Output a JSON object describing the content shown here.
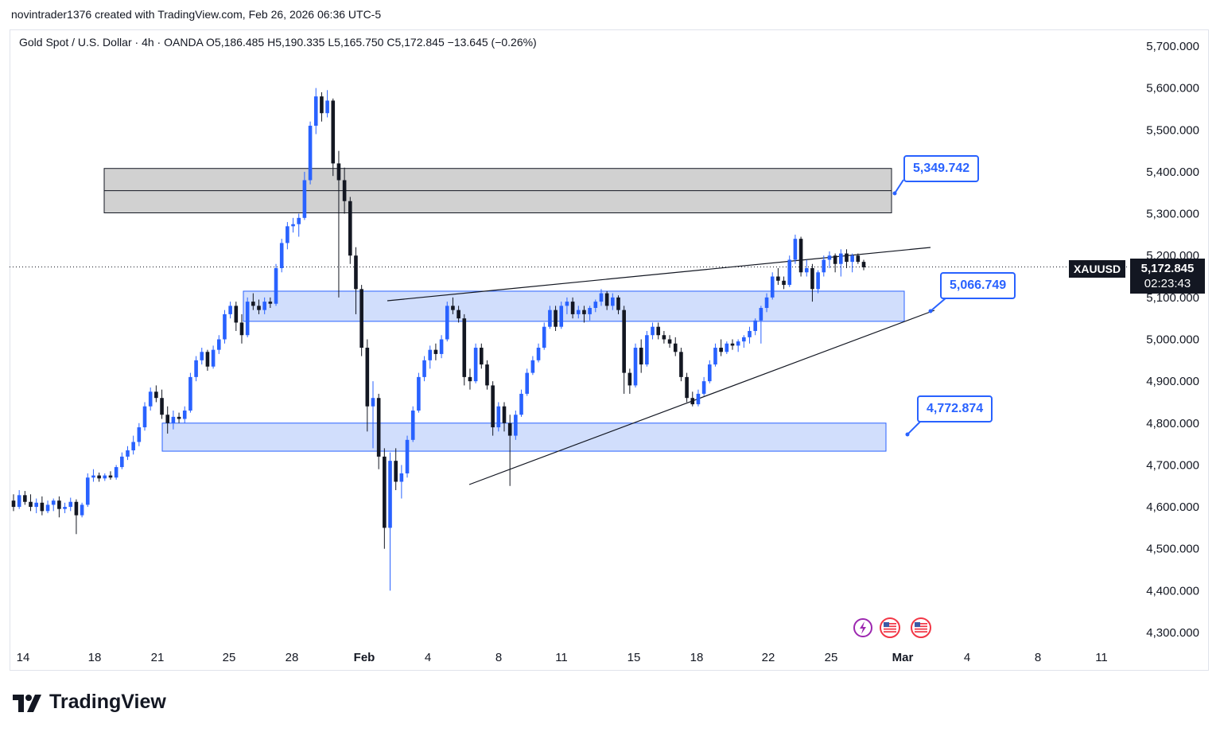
{
  "header": {
    "attribution": "novintrader1376 created with TradingView.com, Feb 26, 2026 06:36 UTC-5"
  },
  "legend": {
    "instrument": "Gold Spot / U.S. Dollar",
    "timeframe": "4h",
    "exchange": "OANDA",
    "open": "O5,186.485",
    "high": "H5,190.335",
    "low": "L5,165.750",
    "close": "C5,172.845",
    "change": "−13.645 (−0.26%)"
  },
  "price_label": {
    "symbol": "XAUUSD",
    "price": "5,172.845",
    "countdown": "02:23:43"
  },
  "callouts": [
    {
      "text": "5,349.742"
    },
    {
      "text": "5,066.749"
    },
    {
      "text": "4,772.874"
    }
  ],
  "brand": {
    "logo_text": "TradingView"
  },
  "colors": {
    "up": "#2962ff",
    "down": "#131722",
    "zone_blue": "#c9d8fc",
    "zone_gray": "#d1d1d1",
    "accent": "#2962ff"
  },
  "icons": [
    "lightning-icon",
    "us-flag-icon",
    "us-flag-icon"
  ],
  "chart_data": {
    "type": "candlestick",
    "y_axis_ticks": [
      "5,700.000",
      "5,600.000",
      "5,500.000",
      "5,400.000",
      "5,300.000",
      "5,200.000",
      "5,100.000",
      "5,000.000",
      "4,900.000",
      "4,800.000",
      "4,700.000",
      "4,600.000",
      "4,500.000",
      "4,400.000",
      "4,300.000"
    ],
    "y_tick_values": [
      5700,
      5600,
      5500,
      5400,
      5300,
      5200,
      5100,
      5000,
      4900,
      4800,
      4700,
      4600,
      4500,
      4400,
      4300
    ],
    "x_axis_ticks": [
      "14",
      "18",
      "21",
      "25",
      "28",
      "Feb",
      "4",
      "8",
      "11",
      "15",
      "18",
      "22",
      "25",
      "Mar",
      "4",
      "8",
      "11"
    ],
    "ylim": [
      4270,
      5790
    ],
    "last_price": 5172.845,
    "zones": [
      {
        "name": "resistance",
        "from": 5302,
        "to": 5408,
        "mid": 5355
      },
      {
        "name": "support-upper",
        "from": 5043,
        "to": 5115
      },
      {
        "name": "support-lower",
        "from": 4733,
        "to": 4800
      }
    ],
    "key_levels": [
      5349.742,
      5066.749,
      4772.874
    ],
    "ohlc": [
      [
        4615,
        4630,
        4590,
        4600
      ],
      [
        4600,
        4640,
        4595,
        4628
      ],
      [
        4628,
        4638,
        4605,
        4612
      ],
      [
        4612,
        4630,
        4590,
        4600
      ],
      [
        4600,
        4620,
        4585,
        4610
      ],
      [
        4610,
        4625,
        4580,
        4590
      ],
      [
        4590,
        4615,
        4585,
        4605
      ],
      [
        4605,
        4620,
        4590,
        4615
      ],
      [
        4615,
        4625,
        4575,
        4595
      ],
      [
        4595,
        4610,
        4585,
        4600
      ],
      [
        4600,
        4622,
        4590,
        4612
      ],
      [
        4612,
        4618,
        4535,
        4580
      ],
      [
        4580,
        4610,
        4575,
        4605
      ],
      [
        4605,
        4680,
        4600,
        4670
      ],
      [
        4670,
        4690,
        4660,
        4675
      ],
      [
        4675,
        4682,
        4660,
        4668
      ],
      [
        4668,
        4680,
        4662,
        4675
      ],
      [
        4675,
        4685,
        4665,
        4670
      ],
      [
        4670,
        4700,
        4665,
        4695
      ],
      [
        4695,
        4730,
        4690,
        4720
      ],
      [
        4720,
        4745,
        4712,
        4735
      ],
      [
        4735,
        4770,
        4725,
        4755
      ],
      [
        4755,
        4800,
        4745,
        4790
      ],
      [
        4790,
        4850,
        4782,
        4840
      ],
      [
        4840,
        4885,
        4830,
        4875
      ],
      [
        4875,
        4890,
        4850,
        4860
      ],
      [
        4860,
        4880,
        4810,
        4820
      ],
      [
        4820,
        4840,
        4775,
        4800
      ],
      [
        4800,
        4830,
        4785,
        4815
      ],
      [
        4815,
        4825,
        4800,
        4810
      ],
      [
        4810,
        4840,
        4800,
        4830
      ],
      [
        4830,
        4920,
        4825,
        4910
      ],
      [
        4910,
        4960,
        4900,
        4950
      ],
      [
        4950,
        4980,
        4940,
        4970
      ],
      [
        4970,
        4975,
        4925,
        4935
      ],
      [
        4935,
        4985,
        4930,
        4975
      ],
      [
        4975,
        5010,
        4965,
        5000
      ],
      [
        5000,
        5070,
        4990,
        5060
      ],
      [
        5060,
        5090,
        5050,
        5080
      ],
      [
        5080,
        5090,
        5020,
        5040
      ],
      [
        5040,
        5060,
        4990,
        5010
      ],
      [
        5010,
        5100,
        5005,
        5090
      ],
      [
        5090,
        5110,
        5070,
        5080
      ],
      [
        5080,
        5095,
        5060,
        5070
      ],
      [
        5070,
        5100,
        5060,
        5090
      ],
      [
        5090,
        5100,
        5075,
        5085
      ],
      [
        5085,
        5180,
        5080,
        5170
      ],
      [
        5170,
        5240,
        5160,
        5230
      ],
      [
        5230,
        5280,
        5215,
        5270
      ],
      [
        5270,
        5290,
        5255,
        5275
      ],
      [
        5275,
        5300,
        5245,
        5290
      ],
      [
        5290,
        5400,
        5285,
        5380
      ],
      [
        5380,
        5520,
        5370,
        5510
      ],
      [
        5510,
        5600,
        5490,
        5580
      ],
      [
        5580,
        5590,
        5520,
        5540
      ],
      [
        5540,
        5595,
        5530,
        5570
      ],
      [
        5570,
        5575,
        5390,
        5420
      ],
      [
        5420,
        5450,
        5100,
        5380
      ],
      [
        5380,
        5410,
        5300,
        5330
      ],
      [
        5330,
        5340,
        5180,
        5200
      ],
      [
        5200,
        5220,
        5060,
        5120
      ],
      [
        5120,
        5130,
        4960,
        4980
      ],
      [
        4980,
        5000,
        4780,
        4840
      ],
      [
        4840,
        4900,
        4740,
        4860
      ],
      [
        4860,
        4870,
        4690,
        4720
      ],
      [
        4720,
        4740,
        4500,
        4550
      ],
      [
        4550,
        4730,
        4400,
        4710
      ],
      [
        4710,
        4740,
        4640,
        4660
      ],
      [
        4660,
        4700,
        4620,
        4680
      ],
      [
        4680,
        4770,
        4670,
        4760
      ],
      [
        4760,
        4840,
        4755,
        4830
      ],
      [
        4830,
        4920,
        4825,
        4910
      ],
      [
        4910,
        4960,
        4900,
        4950
      ],
      [
        4950,
        4985,
        4930,
        4975
      ],
      [
        4975,
        4990,
        4950,
        4965
      ],
      [
        4965,
        5010,
        4955,
        5000
      ],
      [
        5000,
        5090,
        4995,
        5080
      ],
      [
        5080,
        5100,
        5060,
        5070
      ],
      [
        5070,
        5080,
        5040,
        5050
      ],
      [
        5050,
        5060,
        4890,
        4910
      ],
      [
        4910,
        4930,
        4880,
        4900
      ],
      [
        4900,
        4990,
        4895,
        4980
      ],
      [
        4980,
        4990,
        4930,
        4940
      ],
      [
        4940,
        4950,
        4880,
        4890
      ],
      [
        4890,
        4900,
        4770,
        4790
      ],
      [
        4790,
        4850,
        4780,
        4840
      ],
      [
        4840,
        4850,
        4780,
        4800
      ],
      [
        4800,
        4820,
        4650,
        4770
      ],
      [
        4770,
        4830,
        4760,
        4820
      ],
      [
        4820,
        4880,
        4815,
        4870
      ],
      [
        4870,
        4930,
        4865,
        4920
      ],
      [
        4920,
        4960,
        4915,
        4950
      ],
      [
        4950,
        4990,
        4945,
        4980
      ],
      [
        4980,
        5040,
        4975,
        5030
      ],
      [
        5030,
        5080,
        5025,
        5070
      ],
      [
        5070,
        5080,
        5020,
        5030
      ],
      [
        5030,
        5090,
        5025,
        5080
      ],
      [
        5080,
        5100,
        5060,
        5090
      ],
      [
        5090,
        5100,
        5050,
        5060
      ],
      [
        5060,
        5080,
        5050,
        5070
      ],
      [
        5070,
        5080,
        5040,
        5060
      ],
      [
        5060,
        5080,
        5045,
        5075
      ],
      [
        5075,
        5095,
        5065,
        5090
      ],
      [
        5090,
        5120,
        5080,
        5110
      ],
      [
        5110,
        5115,
        5070,
        5080
      ],
      [
        5080,
        5110,
        5070,
        5100
      ],
      [
        5100,
        5105,
        5060,
        5070
      ],
      [
        5070,
        5080,
        4870,
        4920
      ],
      [
        4920,
        4930,
        4870,
        4890
      ],
      [
        4890,
        4990,
        4885,
        4980
      ],
      [
        4980,
        5000,
        4920,
        4940
      ],
      [
        4940,
        5020,
        4935,
        5010
      ],
      [
        5010,
        5040,
        5000,
        5030
      ],
      [
        5030,
        5040,
        5000,
        5010
      ],
      [
        5010,
        5020,
        4990,
        5000
      ],
      [
        5000,
        5010,
        4980,
        4990
      ],
      [
        4990,
        5005,
        4960,
        4970
      ],
      [
        4970,
        4980,
        4900,
        4910
      ],
      [
        4910,
        4920,
        4850,
        4860
      ],
      [
        4860,
        4875,
        4840,
        4845
      ],
      [
        4845,
        4880,
        4840,
        4870
      ],
      [
        4870,
        4910,
        4865,
        4900
      ],
      [
        4900,
        4950,
        4895,
        4940
      ],
      [
        4940,
        4990,
        4935,
        4980
      ],
      [
        4980,
        5000,
        4960,
        4970
      ],
      [
        4970,
        4995,
        4965,
        4990
      ],
      [
        4990,
        5000,
        4975,
        4985
      ],
      [
        4985,
        5000,
        4970,
        4995
      ],
      [
        4995,
        5010,
        4980,
        5005
      ],
      [
        5005,
        5030,
        4990,
        5020
      ],
      [
        5020,
        5050,
        5010,
        5045
      ],
      [
        5045,
        5080,
        4990,
        5075
      ],
      [
        5075,
        5110,
        5065,
        5100
      ],
      [
        5100,
        5160,
        5095,
        5150
      ],
      [
        5150,
        5170,
        5130,
        5140
      ],
      [
        5140,
        5150,
        5120,
        5130
      ],
      [
        5130,
        5200,
        5125,
        5190
      ],
      [
        5190,
        5250,
        5180,
        5240
      ],
      [
        5240,
        5245,
        5150,
        5160
      ],
      [
        5160,
        5190,
        5150,
        5170
      ],
      [
        5170,
        5180,
        5090,
        5120
      ],
      [
        5120,
        5165,
        5110,
        5160
      ],
      [
        5160,
        5200,
        5150,
        5190
      ],
      [
        5190,
        5210,
        5170,
        5200
      ],
      [
        5200,
        5205,
        5160,
        5180
      ],
      [
        5180,
        5215,
        5150,
        5205
      ],
      [
        5205,
        5215,
        5170,
        5185
      ],
      [
        5185,
        5205,
        5160,
        5200
      ],
      [
        5200,
        5205,
        5180,
        5185
      ],
      [
        5185,
        5190,
        5165,
        5172
      ]
    ]
  }
}
